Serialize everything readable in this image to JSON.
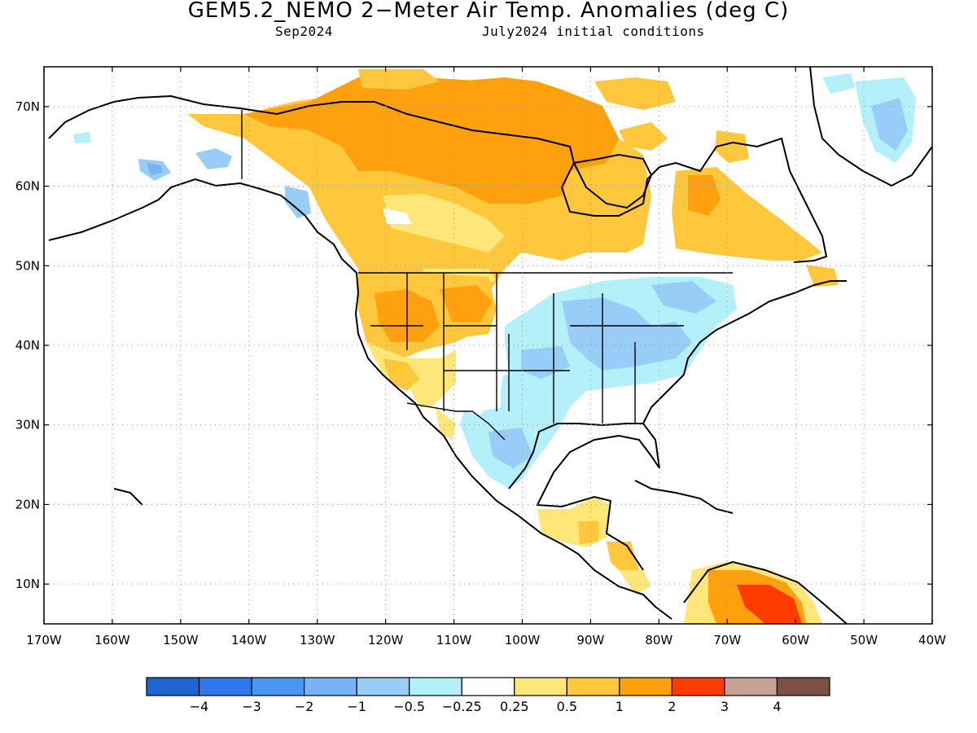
{
  "title": "GEM5.2_NEMO 2−Meter Air Temp. Anomalies (deg C)",
  "valid_month": "Sep2024",
  "init_conditions": "July2024 initial conditions",
  "map": {
    "projection": "cylindrical equidistant",
    "lon_range": [
      -170,
      -40
    ],
    "lat_range": [
      5,
      75
    ],
    "grid_dotted": true,
    "lat_tick_labels": [
      "70N",
      "60N",
      "50N",
      "40N",
      "30N",
      "20N",
      "10N"
    ],
    "lon_tick_labels": [
      "170W",
      "160W",
      "150W",
      "140W",
      "130W",
      "120W",
      "110W",
      "100W",
      "90W",
      "80W",
      "70W",
      "60W",
      "50W",
      "40W"
    ]
  },
  "colorbar": {
    "bins": [
      {
        "color": "#1e64d2"
      },
      {
        "color": "#2f78ea"
      },
      {
        "color": "#4b96f2"
      },
      {
        "color": "#78b4f5"
      },
      {
        "color": "#98cdf8"
      },
      {
        "color": "#b4f0fa"
      },
      {
        "color": "#ffffff"
      },
      {
        "color": "#ffe678"
      },
      {
        "color": "#ffc83c"
      },
      {
        "color": "#ffa00f"
      },
      {
        "color": "#ff3c00"
      },
      {
        "color": "#c8a096"
      },
      {
        "color": "#7d5046"
      }
    ],
    "labels": [
      "−4",
      "−3",
      "−2",
      "−1",
      "−0.5",
      "−0.25",
      "0.25",
      "0.5",
      "1",
      "2",
      "3",
      "4"
    ]
  },
  "anomaly_regions": [
    {
      "category": "0.5 to 1",
      "color": "#ffc83c",
      "where": "western/central Canada, Alaska interior, western US, Quebec-Labrador"
    },
    {
      "category": "1 to 2",
      "color": "#ffa00f",
      "where": "Canadian Arctic archipelago and Nunavut, northern Great Plains"
    },
    {
      "category": "0.25 to 0.5",
      "color": "#ffe678",
      "where": "fringes of warm areas, Central America, Baja"
    },
    {
      "category": "-0.25 to -0.5",
      "color": "#b4f0fa",
      "where": "central and eastern US, Texas, northern Mexico"
    },
    {
      "category": "-0.5 to -1",
      "color": "#98cdf8",
      "where": "Ohio Valley, Mid-Atlantic, northern Mexico interior, Greenland east"
    },
    {
      "category": "2 to 3",
      "color": "#ff3c00",
      "where": "northern South America (Venezuela)"
    }
  ]
}
